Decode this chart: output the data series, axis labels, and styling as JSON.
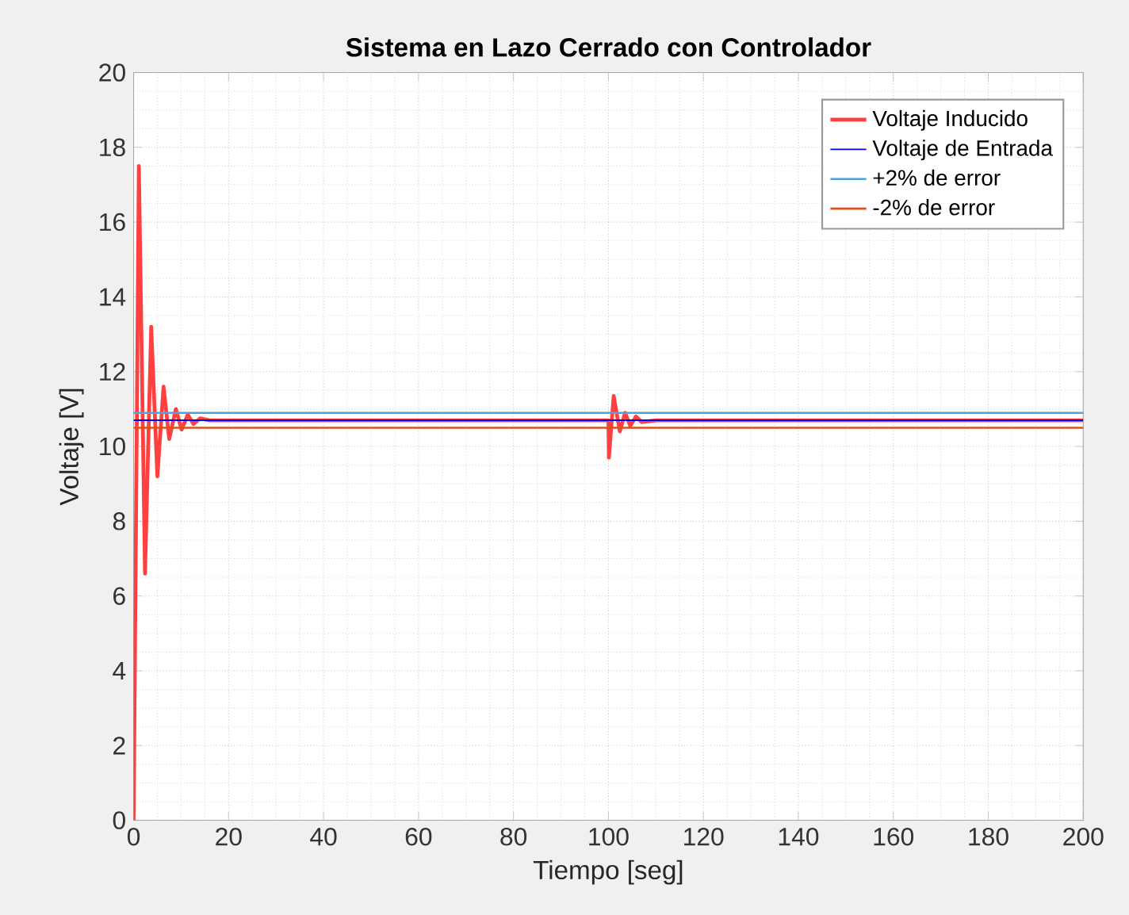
{
  "chart_data": {
    "type": "line",
    "title": "Sistema en Lazo Cerrado con Controlador",
    "xlabel": "Tiempo [seg]",
    "ylabel": "Voltaje [V]",
    "xlim": [
      0,
      200
    ],
    "ylim": [
      0,
      20
    ],
    "xticks": [
      0,
      20,
      40,
      60,
      80,
      100,
      120,
      140,
      160,
      180,
      200
    ],
    "yticks": [
      0,
      2,
      4,
      6,
      8,
      10,
      12,
      14,
      16,
      18,
      20
    ],
    "grid": true,
    "legend": "top right",
    "series": [
      {
        "name": "Voltaje Inducido",
        "color": "#ff4040",
        "x": [
          0,
          1.1,
          2.4,
          3.7,
          5,
          6.3,
          7.5,
          8.9,
          10.1,
          11.4,
          12.6,
          14,
          16,
          100,
          100.1,
          101.1,
          102.4,
          103.5,
          104.6,
          105.8,
          107,
          110,
          200
        ],
        "values": [
          0,
          17.5,
          6.6,
          13.2,
          9.2,
          11.6,
          10.2,
          11.0,
          10.45,
          10.85,
          10.6,
          10.75,
          10.7,
          10.7,
          9.7,
          11.35,
          10.4,
          10.9,
          10.55,
          10.8,
          10.65,
          10.7,
          10.7
        ]
      },
      {
        "name": "Voltaje de Entrada",
        "color": "#0000ff",
        "x": [
          0,
          200
        ],
        "values": [
          10.7,
          10.7
        ]
      }
    ],
    "ref_lines": [
      {
        "axis": "y",
        "value": 10.9,
        "label": "+2% de error",
        "color": "#4da3df"
      },
      {
        "axis": "y",
        "value": 10.5,
        "label": "-2% de error",
        "color": "#d95319"
      }
    ]
  }
}
